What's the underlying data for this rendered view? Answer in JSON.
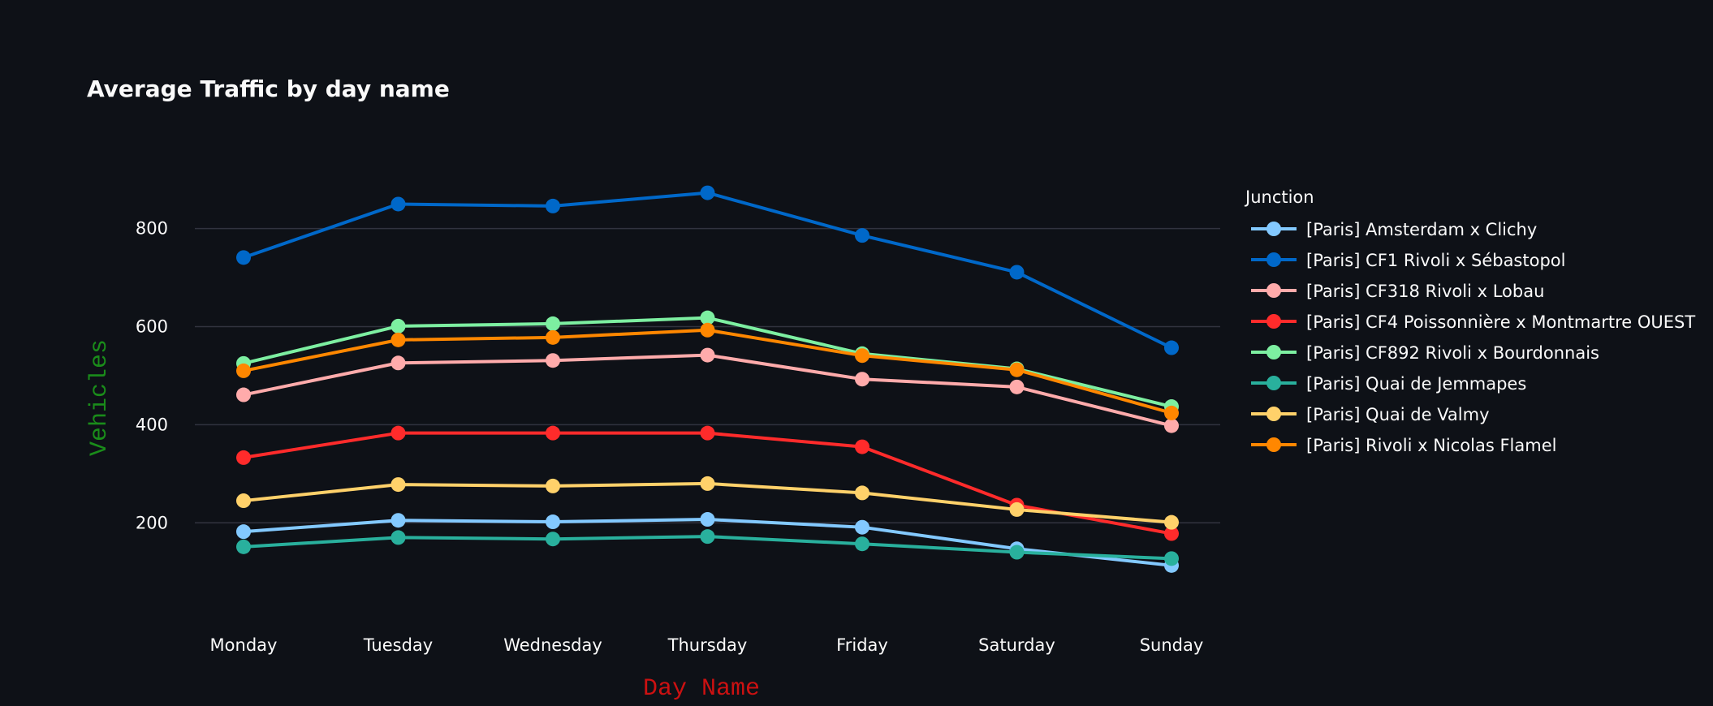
{
  "chart_data": {
    "type": "line",
    "title": "Average Traffic by day name",
    "xlabel": "Day Name",
    "ylabel": "Vehicles",
    "xlabel_color": "#cc1111",
    "ylabel_color": "#1a8c1a",
    "categories": [
      "Monday",
      "Tuesday",
      "Wednesday",
      "Thursday",
      "Friday",
      "Saturday",
      "Sunday"
    ],
    "ylim": [
      25,
      960
    ],
    "yticks": [
      200,
      400,
      600,
      800
    ],
    "grid": true,
    "legend": {
      "title": "Junction",
      "placement": "right"
    },
    "series": [
      {
        "name": "[Paris] Amsterdam x Clichy",
        "color": "#83c9ff",
        "values": [
          182,
          205,
          202,
          207,
          191,
          147,
          113
        ]
      },
      {
        "name": "[Paris] CF1 Rivoli x Sébastopol",
        "color": "#0068c9",
        "values": [
          741,
          850,
          846,
          873,
          786,
          711,
          557
        ]
      },
      {
        "name": "[Paris] CF318 Rivoli x Lobau",
        "color": "#ffabab",
        "values": [
          461,
          526,
          531,
          542,
          493,
          477,
          398
        ]
      },
      {
        "name": "[Paris] CF4 Poissonnière x Montmartre OUEST",
        "color": "#ff2b2b",
        "values": [
          333,
          383,
          383,
          383,
          355,
          236,
          178
        ]
      },
      {
        "name": "[Paris] CF892 Rivoli x Bourdonnais",
        "color": "#7defa1",
        "values": [
          525,
          601,
          606,
          618,
          545,
          514,
          437
        ]
      },
      {
        "name": "[Paris] Quai de Jemmapes",
        "color": "#29b09d",
        "values": [
          151,
          170,
          167,
          172,
          157,
          140,
          127
        ]
      },
      {
        "name": "[Paris] Quai de Valmy",
        "color": "#ffd16a",
        "values": [
          245,
          278,
          275,
          280,
          261,
          227,
          201
        ]
      },
      {
        "name": "[Paris] Rivoli x Nicolas Flamel",
        "color": "#ff8700",
        "values": [
          510,
          573,
          578,
          593,
          541,
          512,
          424
        ]
      }
    ]
  }
}
